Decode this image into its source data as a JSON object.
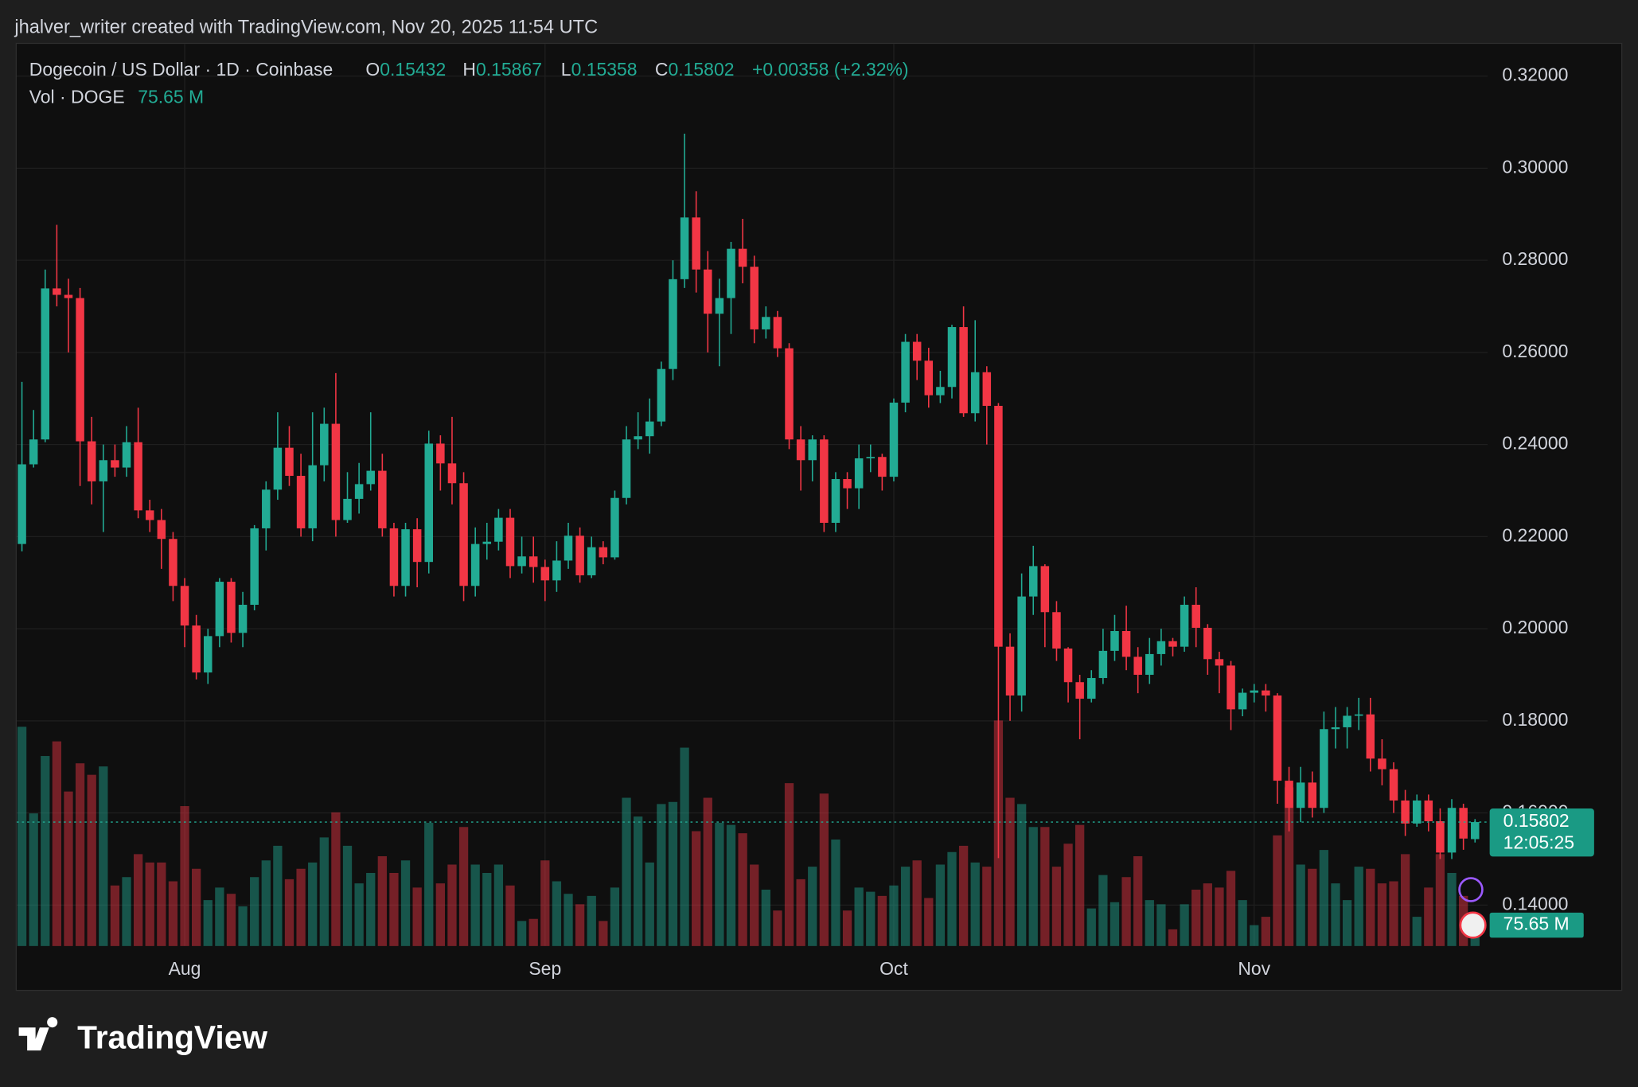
{
  "watermark": "jhalver_writer created with TradingView.com, Nov 20, 2025 11:54 UTC",
  "branding": "TradingView",
  "chart_data": {
    "type": "candlestick",
    "symbol": "Dogecoin / US Dollar · 1D · Coinbase",
    "ohlc_labels": [
      "O",
      "H",
      "L",
      "C"
    ],
    "change": "+0.00358 (+2.32%)",
    "volume_title": "Vol · DOGE",
    "last_volume_label": "75.65 M",
    "countdown": "12:05:25",
    "up_color": "#22ab94",
    "down_color": "#f23645",
    "grid": true,
    "ylim": [
      0.1311,
      0.327
    ],
    "yticks": [
      {
        "value": 0.14,
        "label": "0.14000"
      },
      {
        "value": 0.16,
        "label": "0.16000"
      },
      {
        "value": 0.18,
        "label": "0.18000"
      },
      {
        "value": 0.2,
        "label": "0.20000"
      },
      {
        "value": 0.22,
        "label": "0.22000"
      },
      {
        "value": 0.24,
        "label": "0.24000"
      },
      {
        "value": 0.26,
        "label": "0.26000"
      },
      {
        "value": 0.28,
        "label": "0.28000"
      },
      {
        "value": 0.3,
        "label": "0.30000"
      },
      {
        "value": 0.32,
        "label": "0.32000"
      }
    ],
    "categories": [
      null,
      null,
      null,
      null,
      null,
      null,
      null,
      null,
      null,
      null,
      null,
      null,
      null,
      null,
      "Aug",
      null,
      null,
      null,
      null,
      null,
      null,
      null,
      null,
      null,
      null,
      null,
      null,
      null,
      null,
      null,
      null,
      null,
      null,
      null,
      null,
      null,
      null,
      null,
      null,
      null,
      null,
      null,
      null,
      null,
      null,
      "Sep",
      null,
      null,
      null,
      null,
      null,
      null,
      null,
      null,
      null,
      null,
      null,
      null,
      null,
      null,
      null,
      null,
      null,
      null,
      null,
      null,
      null,
      null,
      null,
      null,
      null,
      null,
      null,
      null,
      null,
      "Oct",
      null,
      null,
      null,
      null,
      null,
      null,
      null,
      null,
      null,
      null,
      null,
      null,
      null,
      null,
      null,
      null,
      null,
      null,
      null,
      null,
      null,
      null,
      null,
      null,
      null,
      null,
      null,
      null,
      null,
      null,
      "Nov",
      null,
      null,
      null,
      null,
      null,
      null,
      null,
      null,
      null,
      null,
      null,
      null,
      null,
      null,
      null,
      null,
      null,
      null,
      null
    ],
    "ohlc": [
      [
        0.2184,
        0.2536,
        0.2168,
        0.2357
      ],
      [
        0.2357,
        0.2475,
        0.235,
        0.2411
      ],
      [
        0.2411,
        0.278,
        0.2405,
        0.2739
      ],
      [
        0.2739,
        0.2877,
        0.27,
        0.2725
      ],
      [
        0.2725,
        0.276,
        0.26,
        0.2718
      ],
      [
        0.2718,
        0.274,
        0.231,
        0.2407
      ],
      [
        0.2407,
        0.246,
        0.227,
        0.232
      ],
      [
        0.232,
        0.24,
        0.221,
        0.2366
      ],
      [
        0.2366,
        0.24,
        0.233,
        0.235
      ],
      [
        0.235,
        0.244,
        0.233,
        0.2405
      ],
      [
        0.2405,
        0.248,
        0.224,
        0.2257
      ],
      [
        0.2257,
        0.228,
        0.221,
        0.2236
      ],
      [
        0.2236,
        0.226,
        0.213,
        0.2195
      ],
      [
        0.2195,
        0.221,
        0.206,
        0.2093
      ],
      [
        0.2093,
        0.211,
        0.196,
        0.2007
      ],
      [
        0.2007,
        0.203,
        0.189,
        0.1905
      ],
      [
        0.1905,
        0.2,
        0.188,
        0.1984
      ],
      [
        0.1984,
        0.211,
        0.196,
        0.2102
      ],
      [
        0.2102,
        0.211,
        0.197,
        0.1991
      ],
      [
        0.1991,
        0.208,
        0.196,
        0.2052
      ],
      [
        0.2052,
        0.2225,
        0.204,
        0.2218
      ],
      [
        0.2218,
        0.232,
        0.217,
        0.2302
      ],
      [
        0.2302,
        0.247,
        0.228,
        0.2393
      ],
      [
        0.2393,
        0.244,
        0.231,
        0.2332
      ],
      [
        0.2332,
        0.238,
        0.22,
        0.2218
      ],
      [
        0.2218,
        0.247,
        0.219,
        0.2355
      ],
      [
        0.2355,
        0.248,
        0.232,
        0.2445
      ],
      [
        0.2445,
        0.2555,
        0.22,
        0.2236
      ],
      [
        0.2236,
        0.234,
        0.223,
        0.2282
      ],
      [
        0.2282,
        0.236,
        0.225,
        0.2314
      ],
      [
        0.2314,
        0.247,
        0.23,
        0.2343
      ],
      [
        0.2343,
        0.238,
        0.22,
        0.2218
      ],
      [
        0.2218,
        0.223,
        0.207,
        0.2093
      ],
      [
        0.2093,
        0.223,
        0.207,
        0.2216
      ],
      [
        0.2216,
        0.224,
        0.209,
        0.2145
      ],
      [
        0.2145,
        0.243,
        0.212,
        0.2402
      ],
      [
        0.2402,
        0.242,
        0.23,
        0.2359
      ],
      [
        0.2359,
        0.246,
        0.227,
        0.2316
      ],
      [
        0.2316,
        0.234,
        0.206,
        0.2093
      ],
      [
        0.2093,
        0.222,
        0.207,
        0.2184
      ],
      [
        0.2184,
        0.223,
        0.215,
        0.2189
      ],
      [
        0.2189,
        0.226,
        0.217,
        0.2241
      ],
      [
        0.2241,
        0.226,
        0.211,
        0.2136
      ],
      [
        0.2136,
        0.22,
        0.212,
        0.2157
      ],
      [
        0.2157,
        0.22,
        0.21,
        0.2134
      ],
      [
        0.2134,
        0.215,
        0.206,
        0.2105
      ],
      [
        0.2105,
        0.219,
        0.208,
        0.2148
      ],
      [
        0.2148,
        0.223,
        0.213,
        0.2202
      ],
      [
        0.2202,
        0.222,
        0.21,
        0.2116
      ],
      [
        0.2116,
        0.22,
        0.211,
        0.2177
      ],
      [
        0.2177,
        0.219,
        0.214,
        0.2155
      ],
      [
        0.2155,
        0.23,
        0.215,
        0.2284
      ],
      [
        0.2284,
        0.244,
        0.227,
        0.2411
      ],
      [
        0.2411,
        0.247,
        0.239,
        0.2418
      ],
      [
        0.2418,
        0.25,
        0.238,
        0.245
      ],
      [
        0.245,
        0.258,
        0.244,
        0.2564
      ],
      [
        0.2564,
        0.28,
        0.254,
        0.2759
      ],
      [
        0.2759,
        0.3075,
        0.274,
        0.2893
      ],
      [
        0.2893,
        0.295,
        0.273,
        0.278
      ],
      [
        0.278,
        0.282,
        0.26,
        0.2684
      ],
      [
        0.2684,
        0.276,
        0.257,
        0.2718
      ],
      [
        0.2718,
        0.284,
        0.264,
        0.2825
      ],
      [
        0.2825,
        0.289,
        0.275,
        0.2786
      ],
      [
        0.2786,
        0.281,
        0.262,
        0.265
      ],
      [
        0.265,
        0.27,
        0.263,
        0.2677
      ],
      [
        0.2677,
        0.269,
        0.259,
        0.2609
      ],
      [
        0.2609,
        0.262,
        0.239,
        0.2411
      ],
      [
        0.2411,
        0.244,
        0.23,
        0.2366
      ],
      [
        0.2366,
        0.242,
        0.232,
        0.2411
      ],
      [
        0.2411,
        0.242,
        0.221,
        0.223
      ],
      [
        0.223,
        0.234,
        0.221,
        0.2325
      ],
      [
        0.2325,
        0.234,
        0.226,
        0.2305
      ],
      [
        0.2305,
        0.24,
        0.226,
        0.237
      ],
      [
        0.237,
        0.24,
        0.234,
        0.2373
      ],
      [
        0.2373,
        0.238,
        0.23,
        0.233
      ],
      [
        0.233,
        0.25,
        0.232,
        0.2491
      ],
      [
        0.2491,
        0.264,
        0.247,
        0.2623
      ],
      [
        0.2623,
        0.264,
        0.254,
        0.2582
      ],
      [
        0.2582,
        0.261,
        0.248,
        0.2507
      ],
      [
        0.2507,
        0.256,
        0.249,
        0.2525
      ],
      [
        0.2525,
        0.266,
        0.25,
        0.2655
      ],
      [
        0.2655,
        0.27,
        0.246,
        0.2468
      ],
      [
        0.2468,
        0.267,
        0.245,
        0.2557
      ],
      [
        0.2557,
        0.257,
        0.24,
        0.2484
      ],
      [
        0.2484,
        0.249,
        0.1502,
        0.1961
      ],
      [
        0.1961,
        0.199,
        0.18,
        0.1855
      ],
      [
        0.1855,
        0.212,
        0.182,
        0.207
      ],
      [
        0.207,
        0.218,
        0.203,
        0.2136
      ],
      [
        0.2136,
        0.214,
        0.196,
        0.2036
      ],
      [
        0.2036,
        0.206,
        0.193,
        0.1957
      ],
      [
        0.1957,
        0.196,
        0.184,
        0.1884
      ],
      [
        0.1884,
        0.19,
        0.176,
        0.1848
      ],
      [
        0.1848,
        0.191,
        0.184,
        0.1893
      ],
      [
        0.1893,
        0.2,
        0.188,
        0.1952
      ],
      [
        0.1952,
        0.203,
        0.193,
        0.1995
      ],
      [
        0.1995,
        0.205,
        0.191,
        0.1939
      ],
      [
        0.1939,
        0.196,
        0.186,
        0.19
      ],
      [
        0.19,
        0.198,
        0.188,
        0.1945
      ],
      [
        0.1945,
        0.2,
        0.192,
        0.1973
      ],
      [
        0.1973,
        0.198,
        0.194,
        0.1961
      ],
      [
        0.1961,
        0.207,
        0.195,
        0.2052
      ],
      [
        0.2052,
        0.209,
        0.196,
        0.2002
      ],
      [
        0.2002,
        0.201,
        0.19,
        0.1934
      ],
      [
        0.1934,
        0.195,
        0.186,
        0.192
      ],
      [
        0.192,
        0.193,
        0.178,
        0.1825
      ],
      [
        0.1825,
        0.187,
        0.181,
        0.1861
      ],
      [
        0.1861,
        0.188,
        0.184,
        0.1866
      ],
      [
        0.1866,
        0.188,
        0.182,
        0.1855
      ],
      [
        0.1855,
        0.186,
        0.162,
        0.167
      ],
      [
        0.167,
        0.17,
        0.156,
        0.1611
      ],
      [
        0.1611,
        0.17,
        0.158,
        0.1666
      ],
      [
        0.1666,
        0.169,
        0.159,
        0.1611
      ],
      [
        0.1611,
        0.182,
        0.16,
        0.1782
      ],
      [
        0.1782,
        0.183,
        0.174,
        0.1786
      ],
      [
        0.1786,
        0.183,
        0.174,
        0.1811
      ],
      [
        0.1811,
        0.185,
        0.178,
        0.1814
      ],
      [
        0.1814,
        0.185,
        0.169,
        0.1718
      ],
      [
        0.1718,
        0.176,
        0.166,
        0.1695
      ],
      [
        0.1695,
        0.171,
        0.16,
        0.1627
      ],
      [
        0.1627,
        0.165,
        0.155,
        0.1577
      ],
      [
        0.1577,
        0.164,
        0.157,
        0.1627
      ],
      [
        0.1627,
        0.164,
        0.156,
        0.1582
      ],
      [
        0.1582,
        0.161,
        0.15,
        0.1514
      ],
      [
        0.1514,
        0.163,
        0.15,
        0.1611
      ],
      [
        0.1611,
        0.162,
        0.152,
        0.15444
      ],
      [
        0.15432,
        0.15867,
        0.15358,
        0.15802
      ]
    ],
    "volume": [
      1050,
      635,
      910,
      980,
      740,
      875,
      820,
      860,
      290,
      330,
      440,
      400,
      400,
      310,
      670,
      370,
      220,
      280,
      250,
      190,
      330,
      410,
      480,
      320,
      370,
      400,
      520,
      640,
      480,
      300,
      350,
      430,
      350,
      410,
      280,
      590,
      300,
      390,
      570,
      390,
      350,
      390,
      290,
      120,
      130,
      410,
      310,
      250,
      200,
      240,
      120,
      280,
      710,
      620,
      400,
      680,
      690,
      950,
      550,
      710,
      590,
      580,
      540,
      390,
      270,
      170,
      780,
      320,
      380,
      730,
      510,
      170,
      280,
      260,
      240,
      290,
      380,
      410,
      230,
      390,
      450,
      480,
      400,
      380,
      1080,
      710,
      680,
      570,
      570,
      380,
      490,
      580,
      180,
      340,
      210,
      330,
      430,
      220,
      200,
      80,
      200,
      270,
      300,
      280,
      360,
      220,
      100,
      140,
      530,
      760,
      390,
      370,
      460,
      300,
      220,
      380,
      370,
      300,
      310,
      440,
      140,
      280,
      440,
      350,
      240,
      75.65
    ]
  }
}
